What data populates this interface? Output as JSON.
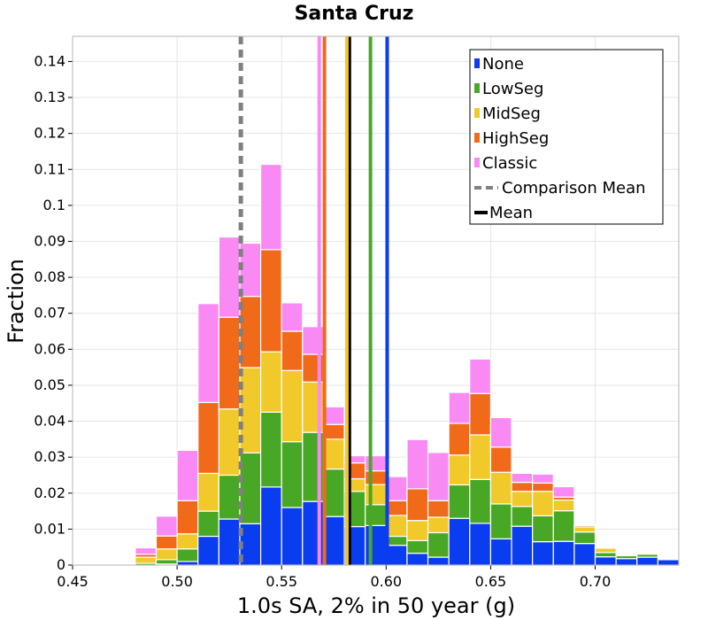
{
  "chart_data": {
    "type": "bar",
    "stacked": true,
    "title": "Santa Cruz",
    "xlabel": "1.0s SA, 2% in 50 year (g)",
    "ylabel": "Fraction",
    "xlim": [
      0.45,
      0.74
    ],
    "ylim": [
      0,
      0.147
    ],
    "xticks": [
      0.45,
      0.5,
      0.55,
      0.6,
      0.65,
      0.7
    ],
    "xtick_labels": [
      "0.45",
      "0.50",
      "0.55",
      "0.60",
      "0.65",
      "0.70"
    ],
    "yticks": [
      0,
      0.01,
      0.02,
      0.03,
      0.04,
      0.05,
      0.06,
      0.07,
      0.08,
      0.09,
      0.1,
      0.11,
      0.12,
      0.13,
      0.14
    ],
    "ytick_labels": [
      "0",
      "0.01",
      "0.02",
      "0.03",
      "0.04",
      "0.05",
      "0.06",
      "0.07",
      "0.08",
      "0.09",
      "0.1",
      "0.11",
      "0.12",
      "0.13",
      "0.14"
    ],
    "grid": true,
    "legend_position": "top-right",
    "bin_width": 0.01,
    "bin_centers": [
      0.485,
      0.495,
      0.505,
      0.515,
      0.525,
      0.535,
      0.545,
      0.555,
      0.565,
      0.575,
      0.585,
      0.595,
      0.605,
      0.615,
      0.625,
      0.635,
      0.645,
      0.655,
      0.665,
      0.675,
      0.685,
      0.695,
      0.705,
      0.715,
      0.725,
      0.735
    ],
    "series": [
      {
        "name": "None",
        "color": "#0a3cf0",
        "values": [
          0.0,
          0.0003,
          0.001,
          0.008,
          0.0128,
          0.0115,
          0.0217,
          0.016,
          0.0177,
          0.0135,
          0.0107,
          0.011,
          0.0055,
          0.0033,
          0.0022,
          0.013,
          0.0116,
          0.0073,
          0.0108,
          0.0065,
          0.0066,
          0.006,
          0.0023,
          0.0018,
          0.0022,
          0.0015
        ]
      },
      {
        "name": "LowSeg",
        "color": "#48a825",
        "values": [
          0.0005,
          0.0012,
          0.0035,
          0.007,
          0.0122,
          0.0197,
          0.0208,
          0.0183,
          0.0192,
          0.0132,
          0.0098,
          0.0058,
          0.0025,
          0.0035,
          0.0068,
          0.0093,
          0.0122,
          0.0097,
          0.0055,
          0.0072,
          0.0085,
          0.0032,
          0.0012,
          0.0008,
          0.0008,
          0.0
        ]
      },
      {
        "name": "MidSeg",
        "color": "#f2c92a",
        "values": [
          0.0017,
          0.003,
          0.0042,
          0.0105,
          0.0184,
          0.0237,
          0.0168,
          0.0198,
          0.014,
          0.0083,
          0.0035,
          0.0056,
          0.0058,
          0.0056,
          0.0043,
          0.0083,
          0.0124,
          0.0088,
          0.0042,
          0.0068,
          0.003,
          0.0014,
          0.0012,
          0.0001,
          0.0,
          0.0
        ]
      },
      {
        "name": "HighSeg",
        "color": "#f06a1a",
        "values": [
          0.0008,
          0.0036,
          0.0092,
          0.0197,
          0.0255,
          0.0198,
          0.0284,
          0.0109,
          0.0077,
          0.0041,
          0.0044,
          0.0038,
          0.0041,
          0.0088,
          0.0046,
          0.0088,
          0.0115,
          0.007,
          0.0025,
          0.0023,
          0.0008,
          0.0004,
          0.0003,
          0.0001,
          0.0,
          0.0
        ]
      },
      {
        "name": "Classic",
        "color": "#f98af4",
        "values": [
          0.0018,
          0.0055,
          0.014,
          0.0275,
          0.0223,
          0.0148,
          0.0237,
          0.0079,
          0.0077,
          0.0049,
          0.002,
          0.0042,
          0.0067,
          0.0137,
          0.0134,
          0.0086,
          0.0096,
          0.0082,
          0.0025,
          0.0025,
          0.0029,
          0.0002,
          0.0002,
          0.0,
          0.0,
          0.0
        ]
      }
    ],
    "vertical_lines": [
      {
        "name": "Comparison Mean",
        "x": 0.5305,
        "color": "#808080",
        "style": "dashed",
        "width": 5,
        "in_legend": true
      },
      {
        "name": "Mean",
        "x": 0.5822,
        "color": "#000000",
        "style": "solid",
        "width": 5,
        "in_legend": true
      },
      {
        "name": "Classic mean",
        "x": 0.568,
        "color": "#f98af4",
        "style": "solid",
        "width": 4,
        "in_legend": false
      },
      {
        "name": "HighSeg mean",
        "x": 0.5705,
        "color": "#f06a1a",
        "style": "solid",
        "width": 4,
        "in_legend": false
      },
      {
        "name": "MidSeg mean",
        "x": 0.5812,
        "color": "#f2c92a",
        "style": "solid",
        "width": 4,
        "in_legend": false
      },
      {
        "name": "LowSeg mean",
        "x": 0.5925,
        "color": "#48a825",
        "style": "solid",
        "width": 4,
        "in_legend": false
      },
      {
        "name": "None mean",
        "x": 0.6005,
        "color": "#0a3cf0",
        "style": "solid",
        "width": 4,
        "in_legend": false
      }
    ],
    "legend": [
      {
        "label": "None",
        "color": "#0a3cf0",
        "kind": "box"
      },
      {
        "label": "LowSeg",
        "color": "#48a825",
        "kind": "box"
      },
      {
        "label": "MidSeg",
        "color": "#f2c92a",
        "kind": "box"
      },
      {
        "label": "HighSeg",
        "color": "#f06a1a",
        "kind": "box"
      },
      {
        "label": "Classic",
        "color": "#f98af4",
        "kind": "box"
      },
      {
        "label": "Comparison Mean",
        "color": "#808080",
        "kind": "dashed"
      },
      {
        "label": "Mean",
        "color": "#000000",
        "kind": "line"
      }
    ]
  }
}
